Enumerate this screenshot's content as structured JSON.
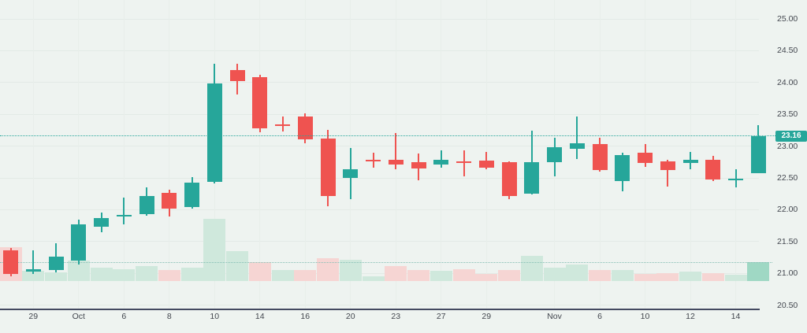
{
  "chart_data": {
    "type": "candlestick",
    "title": "",
    "last_price": 23.16,
    "badge": {
      "label": "23.16",
      "bg": "#26a69a",
      "text_color": "#ffffff"
    },
    "y_axis": {
      "side": "right",
      "ticks": [
        "25.00",
        "24.50",
        "24.00",
        "23.50",
        "23.00",
        "22.50",
        "22.00",
        "21.50",
        "21.00",
        "20.50"
      ],
      "ylim": [
        20.5,
        25.0
      ],
      "step": 0.5
    },
    "x_axis": {
      "side": "bottom",
      "tick_labels": [
        {
          "i": 1,
          "t": "29"
        },
        {
          "i": 3,
          "t": "Oct"
        },
        {
          "i": 5,
          "t": "6"
        },
        {
          "i": 7,
          "t": "8"
        },
        {
          "i": 9,
          "t": "10"
        },
        {
          "i": 11,
          "t": "14"
        },
        {
          "i": 13,
          "t": "16"
        },
        {
          "i": 15,
          "t": "20"
        },
        {
          "i": 17,
          "t": "23"
        },
        {
          "i": 19,
          "t": "27"
        },
        {
          "i": 21,
          "t": "29"
        },
        {
          "i": 24,
          "t": "Nov"
        },
        {
          "i": 26,
          "t": "6"
        },
        {
          "i": 28,
          "t": "10"
        },
        {
          "i": 30,
          "t": "12"
        },
        {
          "i": 32,
          "t": "14"
        }
      ]
    },
    "volume_note": "volume values are relative units (tallest bar = 79); no volume axis labels shown",
    "candles": [
      {
        "o": 21.36,
        "h": 21.4,
        "l": 20.95,
        "c": 20.99,
        "vol": 43,
        "vol_dir": "down"
      },
      {
        "o": 21.03,
        "h": 21.36,
        "l": 20.99,
        "c": 21.06,
        "vol": 13,
        "vol_dir": "up"
      },
      {
        "o": 21.05,
        "h": 21.47,
        "l": 21.02,
        "c": 21.26,
        "vol": 11,
        "vol_dir": "up"
      },
      {
        "o": 21.2,
        "h": 21.84,
        "l": 21.14,
        "c": 21.77,
        "vol": 26,
        "vol_dir": "up"
      },
      {
        "o": 21.73,
        "h": 21.96,
        "l": 21.65,
        "c": 21.87,
        "vol": 17,
        "vol_dir": "up"
      },
      {
        "o": 21.9,
        "h": 22.19,
        "l": 21.77,
        "c": 21.92,
        "vol": 15,
        "vol_dir": "up"
      },
      {
        "o": 21.93,
        "h": 22.35,
        "l": 21.9,
        "c": 22.22,
        "vol": 19,
        "vol_dir": "up"
      },
      {
        "o": 22.27,
        "h": 22.31,
        "l": 21.89,
        "c": 22.02,
        "vol": 14,
        "vol_dir": "down"
      },
      {
        "o": 22.04,
        "h": 22.51,
        "l": 22.02,
        "c": 22.42,
        "vol": 17,
        "vol_dir": "up"
      },
      {
        "o": 22.44,
        "h": 24.3,
        "l": 22.41,
        "c": 23.99,
        "vol": 79,
        "vol_dir": "up"
      },
      {
        "o": 24.2,
        "h": 24.29,
        "l": 23.81,
        "c": 24.02,
        "vol": 38,
        "vol_dir": "up"
      },
      {
        "o": 24.08,
        "h": 24.12,
        "l": 23.22,
        "c": 23.28,
        "vol": 24,
        "vol_dir": "down"
      },
      {
        "o": 23.34,
        "h": 23.47,
        "l": 23.23,
        "c": 23.32,
        "vol": 14,
        "vol_dir": "up"
      },
      {
        "o": 23.47,
        "h": 23.51,
        "l": 23.05,
        "c": 23.11,
        "vol": 14,
        "vol_dir": "down"
      },
      {
        "o": 23.12,
        "h": 23.25,
        "l": 22.06,
        "c": 22.22,
        "vol": 29,
        "vol_dir": "down"
      },
      {
        "o": 22.5,
        "h": 22.97,
        "l": 22.16,
        "c": 22.64,
        "vol": 27,
        "vol_dir": "up"
      },
      {
        "o": 22.78,
        "h": 22.9,
        "l": 22.66,
        "c": 22.76,
        "vol": 6,
        "vol_dir": "up"
      },
      {
        "o": 22.79,
        "h": 23.2,
        "l": 22.64,
        "c": 22.71,
        "vol": 19,
        "vol_dir": "down"
      },
      {
        "o": 22.75,
        "h": 22.88,
        "l": 22.46,
        "c": 22.65,
        "vol": 14,
        "vol_dir": "down"
      },
      {
        "o": 22.71,
        "h": 22.93,
        "l": 22.66,
        "c": 22.78,
        "vol": 13,
        "vol_dir": "up"
      },
      {
        "o": 22.76,
        "h": 22.93,
        "l": 22.53,
        "c": 22.74,
        "vol": 15,
        "vol_dir": "down"
      },
      {
        "o": 22.77,
        "h": 22.91,
        "l": 22.63,
        "c": 22.66,
        "vol": 9,
        "vol_dir": "down"
      },
      {
        "o": 22.75,
        "h": 22.76,
        "l": 22.17,
        "c": 22.21,
        "vol": 14,
        "vol_dir": "down"
      },
      {
        "o": 22.25,
        "h": 23.24,
        "l": 22.24,
        "c": 22.75,
        "vol": 32,
        "vol_dir": "up"
      },
      {
        "o": 22.75,
        "h": 23.13,
        "l": 22.52,
        "c": 22.98,
        "vol": 17,
        "vol_dir": "up"
      },
      {
        "o": 22.96,
        "h": 23.47,
        "l": 22.8,
        "c": 23.04,
        "vol": 21,
        "vol_dir": "up"
      },
      {
        "o": 23.03,
        "h": 23.13,
        "l": 22.6,
        "c": 22.62,
        "vol": 14,
        "vol_dir": "down"
      },
      {
        "o": 22.45,
        "h": 22.89,
        "l": 22.29,
        "c": 22.86,
        "vol": 14,
        "vol_dir": "up"
      },
      {
        "o": 22.9,
        "h": 23.03,
        "l": 22.67,
        "c": 22.73,
        "vol": 9,
        "vol_dir": "down"
      },
      {
        "o": 22.76,
        "h": 22.78,
        "l": 22.37,
        "c": 22.62,
        "vol": 10,
        "vol_dir": "down"
      },
      {
        "o": 22.73,
        "h": 22.91,
        "l": 22.64,
        "c": 22.78,
        "vol": 12,
        "vol_dir": "up"
      },
      {
        "o": 22.78,
        "h": 22.85,
        "l": 22.45,
        "c": 22.48,
        "vol": 10,
        "vol_dir": "down"
      },
      {
        "o": 22.47,
        "h": 22.63,
        "l": 22.35,
        "c": 22.49,
        "vol": 8,
        "vol_dir": "up"
      },
      {
        "o": 22.58,
        "h": 23.33,
        "l": 22.57,
        "c": 23.16,
        "vol": 24,
        "vol_dir": "up",
        "current": true
      }
    ],
    "colors": {
      "up": "#26a69a",
      "down": "#ef5350",
      "vol_up": "#cfe8dc",
      "vol_down": "#f6d5d3",
      "vol_current": "#9fd8c4",
      "background": "#eef3f0",
      "grid": "#e3eae6",
      "axis_text": "#42464e",
      "axis_line": "#434960",
      "price_line": "#26a69a"
    }
  }
}
